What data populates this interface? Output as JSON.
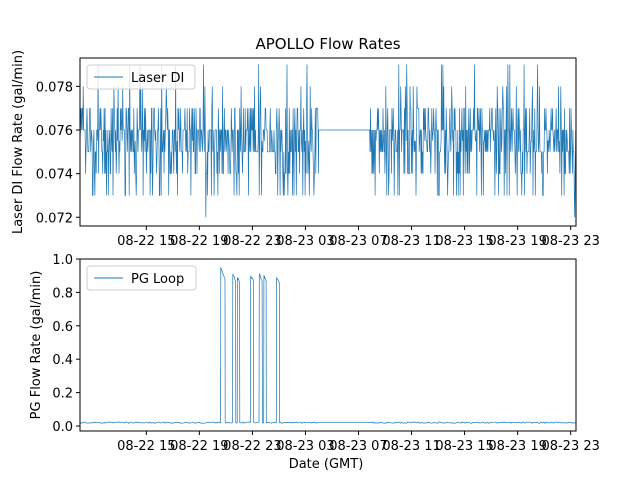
{
  "colors": {
    "series": "#1f77b4",
    "axis": "#000000",
    "legend_border": "#cccccc",
    "background": "#ffffff"
  },
  "chart_data": [
    {
      "type": "line",
      "title": "APOLLO Flow Rates",
      "xlabel": "",
      "ylabel": "Laser DI Flow Rate (gal/min)",
      "x_unit": "hours since 08-22 00:00 GMT",
      "xlim": [
        10.0,
        47.4
      ],
      "ylim": [
        0.0716,
        0.0793
      ],
      "x_ticks": [
        {
          "x": 15,
          "label": "08-22 15"
        },
        {
          "x": 19,
          "label": "08-22 19"
        },
        {
          "x": 23,
          "label": "08-22 23"
        },
        {
          "x": 27,
          "label": "08-23 03"
        },
        {
          "x": 31,
          "label": "08-23 07"
        },
        {
          "x": 35,
          "label": "08-23 11"
        },
        {
          "x": 39,
          "label": "08-23 15"
        },
        {
          "x": 43,
          "label": "08-23 19"
        },
        {
          "x": 47,
          "label": "08-23 23"
        }
      ],
      "y_ticks": [
        {
          "y": 0.072,
          "label": "0.072"
        },
        {
          "y": 0.074,
          "label": "0.074"
        },
        {
          "y": 0.076,
          "label": "0.076"
        },
        {
          "y": 0.078,
          "label": "0.078"
        }
      ],
      "legend": {
        "label": "Laser DI",
        "position": "upper-left"
      },
      "series": [
        {
          "name": "Laser DI",
          "pattern": "noisy flow rate sampled on 0.001 gal/min steps",
          "segments": [
            {
              "x_start": 10.0,
              "x_end": 28.0,
              "mean": 0.0758,
              "typical_range": [
                0.073,
                0.079
              ],
              "notable_lows": [
                {
                  "x": 19.5,
                  "y": 0.072
                }
              ]
            },
            {
              "x_start": 28.0,
              "x_end": 31.8,
              "flat_value": 0.076,
              "note": "constant value, data gap"
            },
            {
              "x_start": 31.8,
              "x_end": 47.4,
              "mean": 0.0758,
              "typical_range": [
                0.073,
                0.079
              ],
              "notable_lows": [
                {
                  "x": 47.3,
                  "y": 0.072
                }
              ]
            }
          ]
        }
      ]
    },
    {
      "type": "line",
      "title": "",
      "xlabel": "Date (GMT)",
      "ylabel": "PG Flow Rate (gal/min)",
      "x_unit": "hours since 08-22 00:00 GMT",
      "xlim": [
        10.0,
        47.4
      ],
      "ylim": [
        -0.03,
        1.0
      ],
      "x_ticks": [
        {
          "x": 15,
          "label": "08-22 15"
        },
        {
          "x": 19,
          "label": "08-22 19"
        },
        {
          "x": 23,
          "label": "08-22 23"
        },
        {
          "x": 27,
          "label": "08-23 03"
        },
        {
          "x": 31,
          "label": "08-23 07"
        },
        {
          "x": 35,
          "label": "08-23 11"
        },
        {
          "x": 39,
          "label": "08-23 15"
        },
        {
          "x": 43,
          "label": "08-23 19"
        },
        {
          "x": 47,
          "label": "08-23 23"
        }
      ],
      "y_ticks": [
        {
          "y": 0.0,
          "label": "0.0"
        },
        {
          "y": 0.2,
          "label": "0.2"
        },
        {
          "y": 0.4,
          "label": "0.4"
        },
        {
          "y": 0.6,
          "label": "0.6"
        },
        {
          "y": 0.8,
          "label": "0.8"
        },
        {
          "y": 1.0,
          "label": "1.0"
        }
      ],
      "legend": {
        "label": "PG Loop",
        "position": "upper-left"
      },
      "series": [
        {
          "name": "PG Loop",
          "baseline": 0.02,
          "flat_gap": [
            28.0,
            31.8
          ],
          "pulses": [
            {
              "start": 20.6,
              "end": 20.95,
              "peak": 0.95,
              "tail": 0.88
            },
            {
              "start": 21.5,
              "end": 21.75,
              "peak": 0.91,
              "tail": 0.87
            },
            {
              "start": 21.85,
              "end": 22.05,
              "peak": 0.89,
              "tail": 0.86
            },
            {
              "start": 22.85,
              "end": 23.1,
              "peak": 0.9,
              "tail": 0.87
            },
            {
              "start": 23.5,
              "end": 23.75,
              "peak": 0.91,
              "tail": 0.87
            },
            {
              "start": 23.85,
              "end": 24.05,
              "peak": 0.9,
              "tail": 0.87
            },
            {
              "start": 24.8,
              "end": 25.05,
              "peak": 0.89,
              "tail": 0.86
            }
          ]
        }
      ]
    }
  ]
}
